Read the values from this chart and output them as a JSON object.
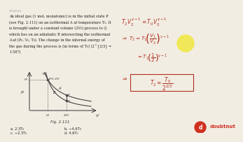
{
  "bg_color": "#f2ede3",
  "text_color": "#222222",
  "highlight_color": "#f5e642",
  "red_color": "#b03020",
  "question_number": "1234534",
  "fig_label": "Fig. 2.111",
  "answer_a": "a. 2.3T₀",
  "answer_b": "b. −4.6T₀",
  "answer_c": "c. −2.3T₀",
  "answer_d": "d. 4.6T₀",
  "graph": {
    "xlabel": "V",
    "ylabel": "P"
  },
  "doubtnut_logo_color": "#d03020",
  "circle_color": "#f0e840"
}
